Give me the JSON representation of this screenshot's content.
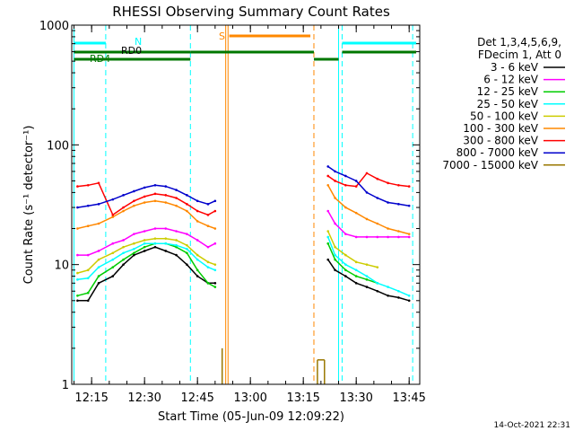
{
  "chart_data": {
    "type": "line",
    "title": "RHESSI Observing Summary Count Rates",
    "xlabel": "Start Time (05-Jun-09 12:09:22)",
    "ylabel": "Count Rate (s⁻¹ detector⁻¹)",
    "y_scale": "log",
    "ylim": [
      1,
      1000
    ],
    "y_ticks": [
      "1",
      "10",
      "100",
      "1000"
    ],
    "x_range": [
      "12:09:22",
      "13:48:00"
    ],
    "x_ticks": [
      "12:15",
      "12:30",
      "12:45",
      "13:00",
      "13:15",
      "13:30",
      "13:45"
    ],
    "legend_position": "right",
    "legend_header": [
      "Det 1,3,4,5,6,9,",
      "FDecim 1, Att 0"
    ],
    "series": [
      {
        "name": "3 - 6 keV",
        "color": "#000000",
        "x": [
          "12:11",
          "12:14",
          "12:17",
          "12:21",
          "12:24",
          "12:27",
          "12:30",
          "12:33",
          "12:36",
          "12:39",
          "12:42",
          "12:45",
          "12:48",
          "12:50",
          "13:22",
          "13:24",
          "13:27",
          "13:30",
          "13:33",
          "13:36",
          "13:39",
          "13:42",
          "13:45"
        ],
        "y": [
          5,
          5,
          7,
          8,
          10,
          12,
          13,
          14,
          13,
          12,
          10,
          8,
          7,
          7,
          11,
          9,
          8,
          7,
          6.5,
          6,
          5.5,
          5.3,
          5
        ]
      },
      {
        "name": "6 - 12 keV",
        "color": "#ff00ff",
        "x": [
          "12:11",
          "12:14",
          "12:17",
          "12:21",
          "12:24",
          "12:27",
          "12:30",
          "12:33",
          "12:36",
          "12:39",
          "12:42",
          "12:45",
          "12:48",
          "12:50",
          "13:22",
          "13:24",
          "13:27",
          "13:30",
          "13:33",
          "13:36",
          "13:39",
          "13:42",
          "13:45"
        ],
        "y": [
          12,
          12,
          13,
          15,
          16,
          18,
          19,
          20,
          20,
          19,
          18,
          16,
          14,
          15,
          28,
          22,
          18,
          17,
          17,
          17,
          17,
          17,
          17
        ]
      },
      {
        "name": "12 - 25 keV",
        "color": "#00cc00",
        "x": [
          "12:11",
          "12:14",
          "12:17",
          "12:21",
          "12:24",
          "12:27",
          "12:30",
          "12:33",
          "12:36",
          "12:39",
          "12:42",
          "12:45",
          "12:48",
          "12:50",
          "13:22",
          "13:24",
          "13:27",
          "13:30",
          "13:33",
          "13:36"
        ],
        "y": [
          5.5,
          5.8,
          8,
          9.5,
          11,
          12.5,
          14,
          15,
          15,
          14,
          12.5,
          9,
          7,
          6.5,
          15,
          11,
          9,
          8,
          7.5,
          7
        ]
      },
      {
        "name": "25 - 50 keV",
        "color": "#00ffff",
        "x": [
          "12:11",
          "12:14",
          "12:17",
          "12:21",
          "12:24",
          "12:27",
          "12:30",
          "12:33",
          "12:36",
          "12:39",
          "12:42",
          "12:45",
          "12:48",
          "12:50",
          "13:22",
          "13:24",
          "13:27",
          "13:30",
          "13:33",
          "13:36",
          "13:39",
          "13:42",
          "13:45"
        ],
        "y": [
          7.5,
          7.7,
          9.5,
          11,
          12.5,
          13.5,
          15,
          15,
          15,
          14.5,
          13.5,
          11,
          9.5,
          9,
          17,
          12,
          10,
          9,
          8,
          7,
          6.5,
          6,
          5.5
        ]
      },
      {
        "name": "50 - 100 keV",
        "color": "#cccc00",
        "x": [
          "12:11",
          "12:14",
          "12:17",
          "12:21",
          "12:24",
          "12:27",
          "12:30",
          "12:33",
          "12:36",
          "12:39",
          "12:42",
          "12:45",
          "12:48",
          "12:50",
          "13:22",
          "13:24",
          "13:27",
          "13:30",
          "13:33",
          "13:36"
        ],
        "y": [
          8.5,
          9,
          11,
          12.5,
          14,
          15,
          16,
          16.5,
          16.5,
          16,
          14.5,
          12,
          10.5,
          10,
          19,
          14,
          12,
          10.5,
          10,
          9.5
        ]
      },
      {
        "name": "100 - 300 keV",
        "color": "#ff8800",
        "x": [
          "12:11",
          "12:14",
          "12:17",
          "12:21",
          "12:24",
          "12:27",
          "12:30",
          "12:33",
          "12:36",
          "12:39",
          "12:42",
          "12:45",
          "12:48",
          "12:50",
          "13:22",
          "13:24",
          "13:27",
          "13:30",
          "13:33",
          "13:36",
          "13:39",
          "13:42",
          "13:45"
        ],
        "y": [
          20,
          21,
          22,
          25,
          28,
          31,
          33,
          34,
          33,
          31,
          28,
          23,
          21,
          20,
          46,
          36,
          30,
          27,
          24,
          22,
          20,
          19,
          18
        ]
      },
      {
        "name": "300 - 800 keV",
        "color": "#ff0000",
        "x": [
          "12:11",
          "12:14",
          "12:17",
          "12:21",
          "12:24",
          "12:27",
          "12:30",
          "12:33",
          "12:36",
          "12:39",
          "12:42",
          "12:45",
          "12:48",
          "12:50",
          "13:22",
          "13:24",
          "13:27",
          "13:30",
          "13:33",
          "13:36",
          "13:39",
          "13:42",
          "13:45"
        ],
        "y": [
          45,
          46,
          48,
          26,
          30,
          34,
          37,
          39,
          38,
          36,
          32,
          28,
          26,
          28,
          55,
          50,
          46,
          45,
          58,
          52,
          48,
          46,
          45
        ]
      },
      {
        "name": "800 - 7000 keV",
        "color": "#0000cc",
        "x": [
          "12:11",
          "12:14",
          "12:17",
          "12:21",
          "12:24",
          "12:27",
          "12:30",
          "12:33",
          "12:36",
          "12:39",
          "12:42",
          "12:45",
          "12:48",
          "12:50",
          "13:22",
          "13:24",
          "13:27",
          "13:30",
          "13:33",
          "13:36",
          "13:39",
          "13:42",
          "13:45"
        ],
        "y": [
          30,
          31,
          32,
          35,
          38,
          41,
          44,
          46,
          45,
          42,
          38,
          34,
          32,
          34,
          66,
          60,
          55,
          50,
          40,
          36,
          33,
          32,
          31
        ]
      },
      {
        "name": "7000 - 15000 keV",
        "color": "#997700",
        "x": [
          "12:52",
          "13:19",
          "13:21"
        ],
        "y": [
          2,
          1.6,
          1.6
        ]
      }
    ],
    "annotations": [
      {
        "text": "N",
        "color": "#00ffff"
      },
      {
        "text": "RD0",
        "color": "#000000"
      },
      {
        "text": "RD4",
        "color": "#007700"
      },
      {
        "text": "S",
        "color": "#ff8800"
      }
    ],
    "timestamp": "14-Oct-2021 22:31"
  }
}
